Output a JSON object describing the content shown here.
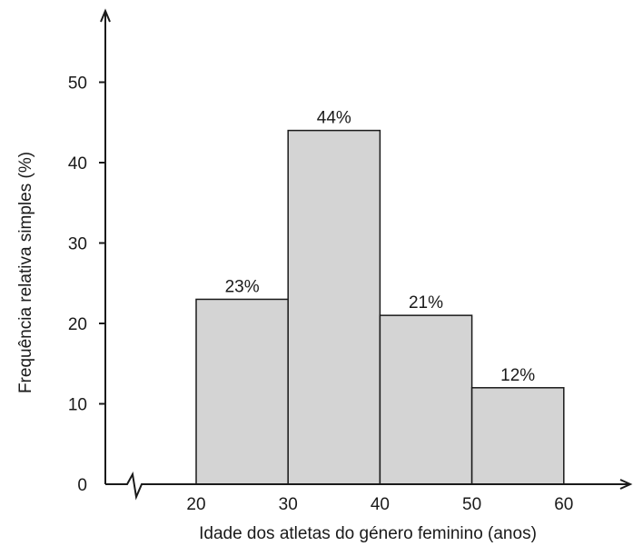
{
  "chart_data": {
    "type": "bar",
    "title": "",
    "xlabel": "Idade dos atletas do género feminino (anos)",
    "ylabel": "Frequência relativa simples (%)",
    "bins": [
      {
        "from": 20,
        "to": 30,
        "value": 23,
        "label": "23%"
      },
      {
        "from": 30,
        "to": 40,
        "value": 44,
        "label": "44%"
      },
      {
        "from": 40,
        "to": 50,
        "value": 21,
        "label": "21%"
      },
      {
        "from": 50,
        "to": 60,
        "value": 12,
        "label": "12%"
      }
    ],
    "x_ticks": [
      20,
      30,
      40,
      50,
      60
    ],
    "y_ticks": [
      0,
      10,
      20,
      30,
      40,
      50
    ],
    "xlim": [
      10,
      67
    ],
    "ylim": [
      0,
      55
    ],
    "x_axis_break": true,
    "bar_color": "#d4d4d4",
    "edge_color": "#1a1a1a",
    "grid": false,
    "legend": "none"
  }
}
